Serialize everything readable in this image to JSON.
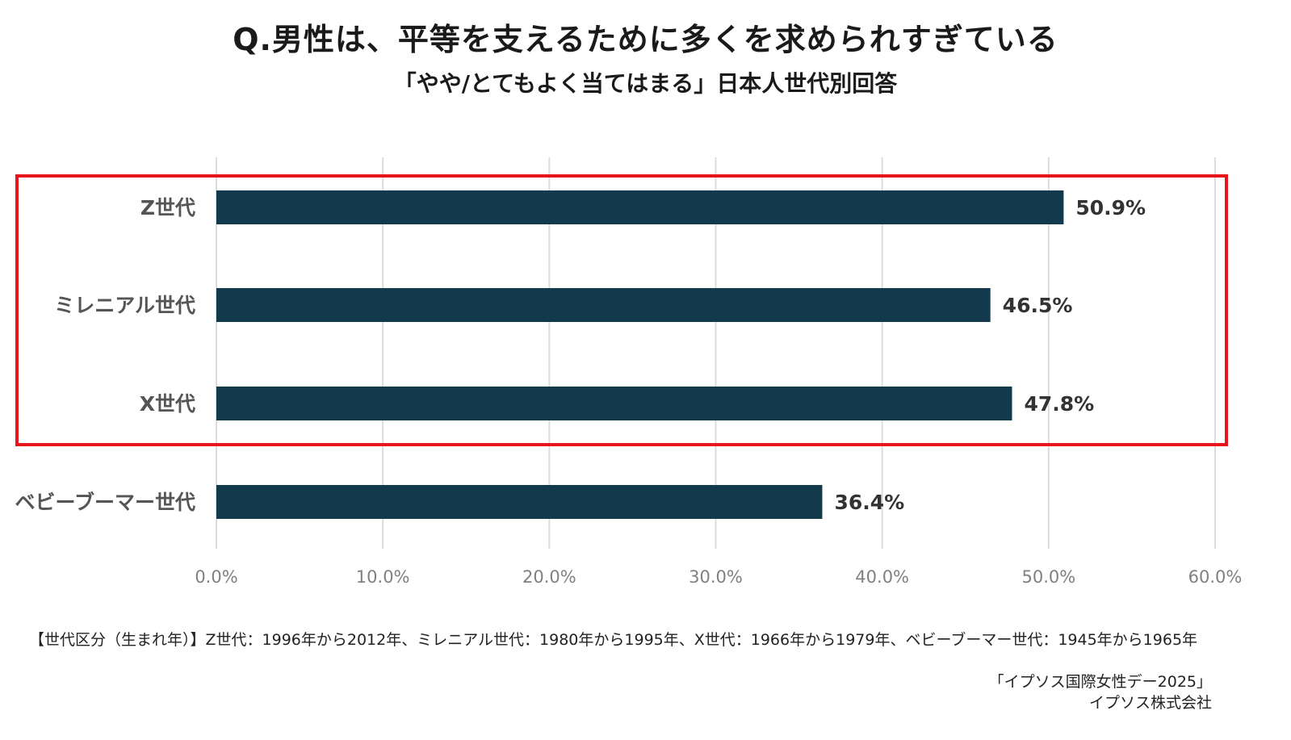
{
  "title": "Q.男性は、平等を支えるために多くを求められすぎている",
  "subtitle": "「やや/とてもよく当てはまる」日本人世代別回答",
  "chart_data": {
    "type": "bar",
    "orientation": "horizontal",
    "categories": [
      "Z世代",
      "ミレニアル世代",
      "X世代",
      "ベビーブーマー世代"
    ],
    "values": [
      50.9,
      46.5,
      47.8,
      36.4
    ],
    "value_labels": [
      "50.9%",
      "46.5%",
      "47.8%",
      "36.4%"
    ],
    "xlim": [
      0,
      60
    ],
    "xticks": [
      0,
      10,
      20,
      30,
      40,
      50,
      60
    ],
    "xtick_labels": [
      "0.0%",
      "10.0%",
      "20.0%",
      "30.0%",
      "40.0%",
      "50.0%",
      "60.0%"
    ],
    "grid": "vertical",
    "highlight": {
      "categories": [
        "Z世代",
        "ミレニアル世代",
        "X世代"
      ],
      "color": "#e8161b"
    },
    "colors": {
      "bar": "#133a4c",
      "grid": "#dcdcdc",
      "tick_label": "#808080",
      "category_label": "#555555",
      "value_label": "#333333"
    }
  },
  "note": "【世代区分（生まれ年）】Z世代：1996年から2012年、ミレニアル世代：1980年から1995年、X世代：1966年から1979年、ベビーブーマー世代：1945年から1965年",
  "source": {
    "line1": "「イプソス国際女性デー2025」",
    "line2": "イプソス株式会社"
  }
}
